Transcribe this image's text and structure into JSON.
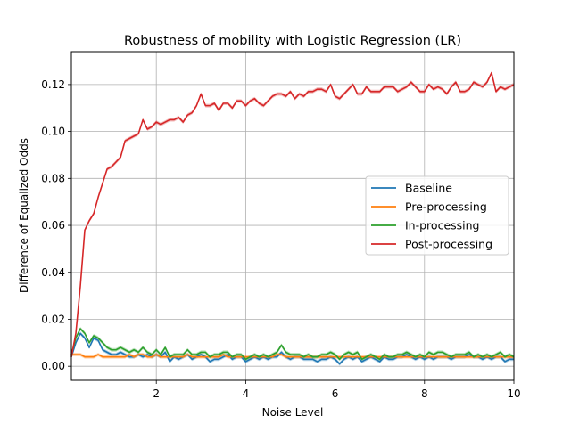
{
  "chart_data": {
    "type": "line",
    "title": "Robustness of mobility with Logistic Regression (LR)",
    "xlabel": "Noise Level",
    "ylabel": "Difference of Equalized Odds",
    "xlim": [
      0.1,
      10
    ],
    "ylim": [
      -0.006,
      0.134
    ],
    "x_ticks": [
      2,
      4,
      6,
      8,
      10
    ],
    "x_tick_labels": [
      "2",
      "4",
      "6",
      "8",
      "10"
    ],
    "y_ticks": [
      0.0,
      0.02,
      0.04,
      0.06,
      0.08,
      0.1,
      0.12
    ],
    "y_tick_labels": [
      "0.00",
      "0.02",
      "0.04",
      "0.06",
      "0.08",
      "0.10",
      "0.12"
    ],
    "grid": true,
    "legend_position": "center-right",
    "x": [
      0.1,
      0.2,
      0.3,
      0.4,
      0.5,
      0.6,
      0.7,
      0.8,
      0.9,
      1.0,
      1.1,
      1.2,
      1.3,
      1.4,
      1.5,
      1.6,
      1.7,
      1.8,
      1.9,
      2.0,
      2.1,
      2.2,
      2.3,
      2.4,
      2.5,
      2.6,
      2.7,
      2.8,
      2.9,
      3.0,
      3.1,
      3.2,
      3.3,
      3.4,
      3.5,
      3.6,
      3.7,
      3.8,
      3.9,
      4.0,
      4.1,
      4.2,
      4.3,
      4.4,
      4.5,
      4.6,
      4.7,
      4.8,
      4.9,
      5.0,
      5.1,
      5.2,
      5.3,
      5.4,
      5.5,
      5.6,
      5.7,
      5.8,
      5.9,
      6.0,
      6.1,
      6.2,
      6.3,
      6.4,
      6.5,
      6.6,
      6.7,
      6.8,
      6.9,
      7.0,
      7.1,
      7.2,
      7.3,
      7.4,
      7.5,
      7.6,
      7.7,
      7.8,
      7.9,
      8.0,
      8.1,
      8.2,
      8.3,
      8.4,
      8.5,
      8.6,
      8.7,
      8.8,
      8.9,
      9.0,
      9.1,
      9.2,
      9.3,
      9.4,
      9.5,
      9.6,
      9.7,
      9.8,
      9.9,
      10.0
    ],
    "series": [
      {
        "name": "Baseline",
        "color": "#1f77b4",
        "values": [
          0.004,
          0.01,
          0.014,
          0.012,
          0.008,
          0.012,
          0.011,
          0.007,
          0.006,
          0.005,
          0.005,
          0.006,
          0.005,
          0.004,
          0.004,
          0.005,
          0.004,
          0.005,
          0.004,
          0.005,
          0.004,
          0.006,
          0.002,
          0.004,
          0.003,
          0.004,
          0.005,
          0.003,
          0.004,
          0.005,
          0.004,
          0.002,
          0.003,
          0.003,
          0.004,
          0.005,
          0.003,
          0.004,
          0.004,
          0.002,
          0.003,
          0.004,
          0.003,
          0.004,
          0.003,
          0.004,
          0.004,
          0.006,
          0.004,
          0.003,
          0.004,
          0.004,
          0.003,
          0.003,
          0.003,
          0.002,
          0.003,
          0.003,
          0.004,
          0.003,
          0.001,
          0.003,
          0.004,
          0.003,
          0.004,
          0.002,
          0.003,
          0.004,
          0.003,
          0.002,
          0.004,
          0.003,
          0.003,
          0.004,
          0.004,
          0.005,
          0.004,
          0.003,
          0.004,
          0.003,
          0.004,
          0.003,
          0.004,
          0.004,
          0.004,
          0.003,
          0.004,
          0.004,
          0.004,
          0.005,
          0.004,
          0.004,
          0.003,
          0.004,
          0.003,
          0.004,
          0.004,
          0.002,
          0.003,
          0.003
        ]
      },
      {
        "name": "Pre-processing",
        "color": "#ff7f0e",
        "values": [
          0.005,
          0.005,
          0.005,
          0.004,
          0.004,
          0.004,
          0.005,
          0.004,
          0.004,
          0.004,
          0.004,
          0.004,
          0.004,
          0.005,
          0.004,
          0.005,
          0.005,
          0.004,
          0.004,
          0.005,
          0.004,
          0.004,
          0.004,
          0.004,
          0.004,
          0.004,
          0.005,
          0.004,
          0.004,
          0.004,
          0.004,
          0.004,
          0.004,
          0.004,
          0.005,
          0.004,
          0.004,
          0.004,
          0.004,
          0.004,
          0.004,
          0.004,
          0.004,
          0.004,
          0.004,
          0.004,
          0.005,
          0.005,
          0.004,
          0.004,
          0.004,
          0.004,
          0.004,
          0.004,
          0.004,
          0.004,
          0.004,
          0.004,
          0.004,
          0.004,
          0.004,
          0.004,
          0.004,
          0.004,
          0.004,
          0.004,
          0.004,
          0.004,
          0.004,
          0.004,
          0.004,
          0.004,
          0.004,
          0.004,
          0.004,
          0.004,
          0.004,
          0.004,
          0.004,
          0.004,
          0.004,
          0.004,
          0.004,
          0.004,
          0.004,
          0.004,
          0.004,
          0.004,
          0.004,
          0.004,
          0.004,
          0.004,
          0.004,
          0.004,
          0.004,
          0.004,
          0.004,
          0.004,
          0.004,
          0.004
        ]
      },
      {
        "name": "In-processing",
        "color": "#2ca02c",
        "values": [
          0.005,
          0.012,
          0.016,
          0.014,
          0.01,
          0.013,
          0.012,
          0.01,
          0.008,
          0.007,
          0.007,
          0.008,
          0.007,
          0.006,
          0.007,
          0.006,
          0.008,
          0.006,
          0.005,
          0.007,
          0.005,
          0.008,
          0.004,
          0.005,
          0.005,
          0.005,
          0.007,
          0.005,
          0.005,
          0.006,
          0.006,
          0.004,
          0.005,
          0.005,
          0.006,
          0.006,
          0.004,
          0.005,
          0.005,
          0.003,
          0.004,
          0.005,
          0.004,
          0.005,
          0.004,
          0.005,
          0.006,
          0.009,
          0.006,
          0.005,
          0.005,
          0.005,
          0.004,
          0.005,
          0.004,
          0.004,
          0.005,
          0.005,
          0.006,
          0.005,
          0.003,
          0.005,
          0.006,
          0.005,
          0.006,
          0.003,
          0.004,
          0.005,
          0.004,
          0.003,
          0.005,
          0.004,
          0.004,
          0.005,
          0.005,
          0.006,
          0.005,
          0.004,
          0.005,
          0.004,
          0.006,
          0.005,
          0.006,
          0.006,
          0.005,
          0.004,
          0.005,
          0.005,
          0.005,
          0.006,
          0.004,
          0.005,
          0.004,
          0.005,
          0.004,
          0.005,
          0.006,
          0.004,
          0.005,
          0.004
        ]
      },
      {
        "name": "Post-processing",
        "color": "#d62728",
        "values": [
          0.004,
          0.014,
          0.034,
          0.058,
          0.062,
          0.065,
          0.072,
          0.078,
          0.084,
          0.085,
          0.087,
          0.089,
          0.096,
          0.097,
          0.098,
          0.099,
          0.105,
          0.101,
          0.102,
          0.104,
          0.103,
          0.104,
          0.105,
          0.105,
          0.106,
          0.104,
          0.107,
          0.108,
          0.111,
          0.116,
          0.111,
          0.111,
          0.112,
          0.109,
          0.112,
          0.112,
          0.11,
          0.113,
          0.113,
          0.111,
          0.113,
          0.114,
          0.112,
          0.111,
          0.113,
          0.115,
          0.116,
          0.116,
          0.115,
          0.117,
          0.114,
          0.116,
          0.115,
          0.117,
          0.117,
          0.118,
          0.118,
          0.117,
          0.12,
          0.115,
          0.114,
          0.116,
          0.118,
          0.12,
          0.116,
          0.116,
          0.119,
          0.117,
          0.117,
          0.117,
          0.119,
          0.119,
          0.119,
          0.117,
          0.118,
          0.119,
          0.121,
          0.119,
          0.117,
          0.117,
          0.12,
          0.118,
          0.119,
          0.118,
          0.116,
          0.119,
          0.121,
          0.117,
          0.117,
          0.118,
          0.121,
          0.12,
          0.119,
          0.121,
          0.125,
          0.117,
          0.119,
          0.118,
          0.119,
          0.12
        ]
      }
    ]
  }
}
